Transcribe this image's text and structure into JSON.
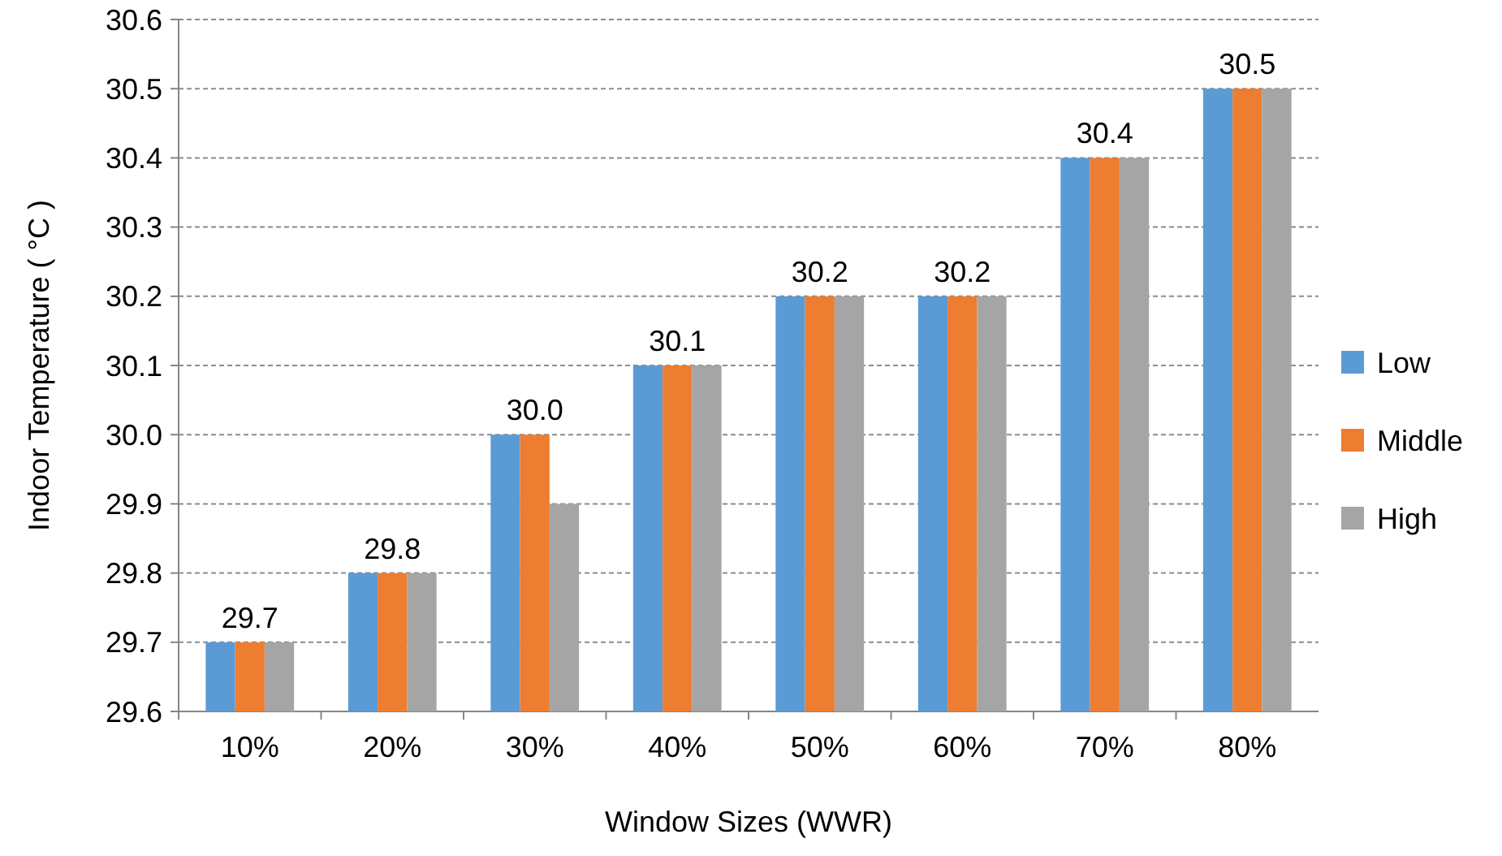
{
  "chart_data": {
    "type": "bar",
    "xlabel": "Window Sizes (WWR)",
    "ylabel": "Indoor Temperature ( °C )",
    "categories": [
      "10%",
      "20%",
      "30%",
      "40%",
      "50%",
      "60%",
      "70%",
      "80%"
    ],
    "series": [
      {
        "name": "Low",
        "color": "#5b9bd5",
        "values": [
          29.7,
          29.8,
          30.0,
          30.1,
          30.2,
          30.2,
          30.4,
          30.5
        ]
      },
      {
        "name": "Middle",
        "color": "#ed7d31",
        "values": [
          29.7,
          29.8,
          30.0,
          30.1,
          30.2,
          30.2,
          30.4,
          30.5
        ],
        "value_labels": [
          "29.7",
          "29.8",
          "30.0",
          "30.1",
          "30.2",
          "30.2",
          "30.4",
          "30.5"
        ]
      },
      {
        "name": "High",
        "color": "#a5a5a5",
        "values": [
          29.7,
          29.8,
          29.9,
          30.1,
          30.2,
          30.2,
          30.4,
          30.5
        ]
      }
    ],
    "ylim": [
      29.6,
      30.6
    ],
    "yticks": [
      29.6,
      29.7,
      29.8,
      29.9,
      {
        "value": 30,
        "label": "30.0"
      },
      30.1,
      30.2,
      30.3,
      30.4,
      30.5,
      30.6
    ],
    "grid": "y",
    "legend": "right"
  }
}
